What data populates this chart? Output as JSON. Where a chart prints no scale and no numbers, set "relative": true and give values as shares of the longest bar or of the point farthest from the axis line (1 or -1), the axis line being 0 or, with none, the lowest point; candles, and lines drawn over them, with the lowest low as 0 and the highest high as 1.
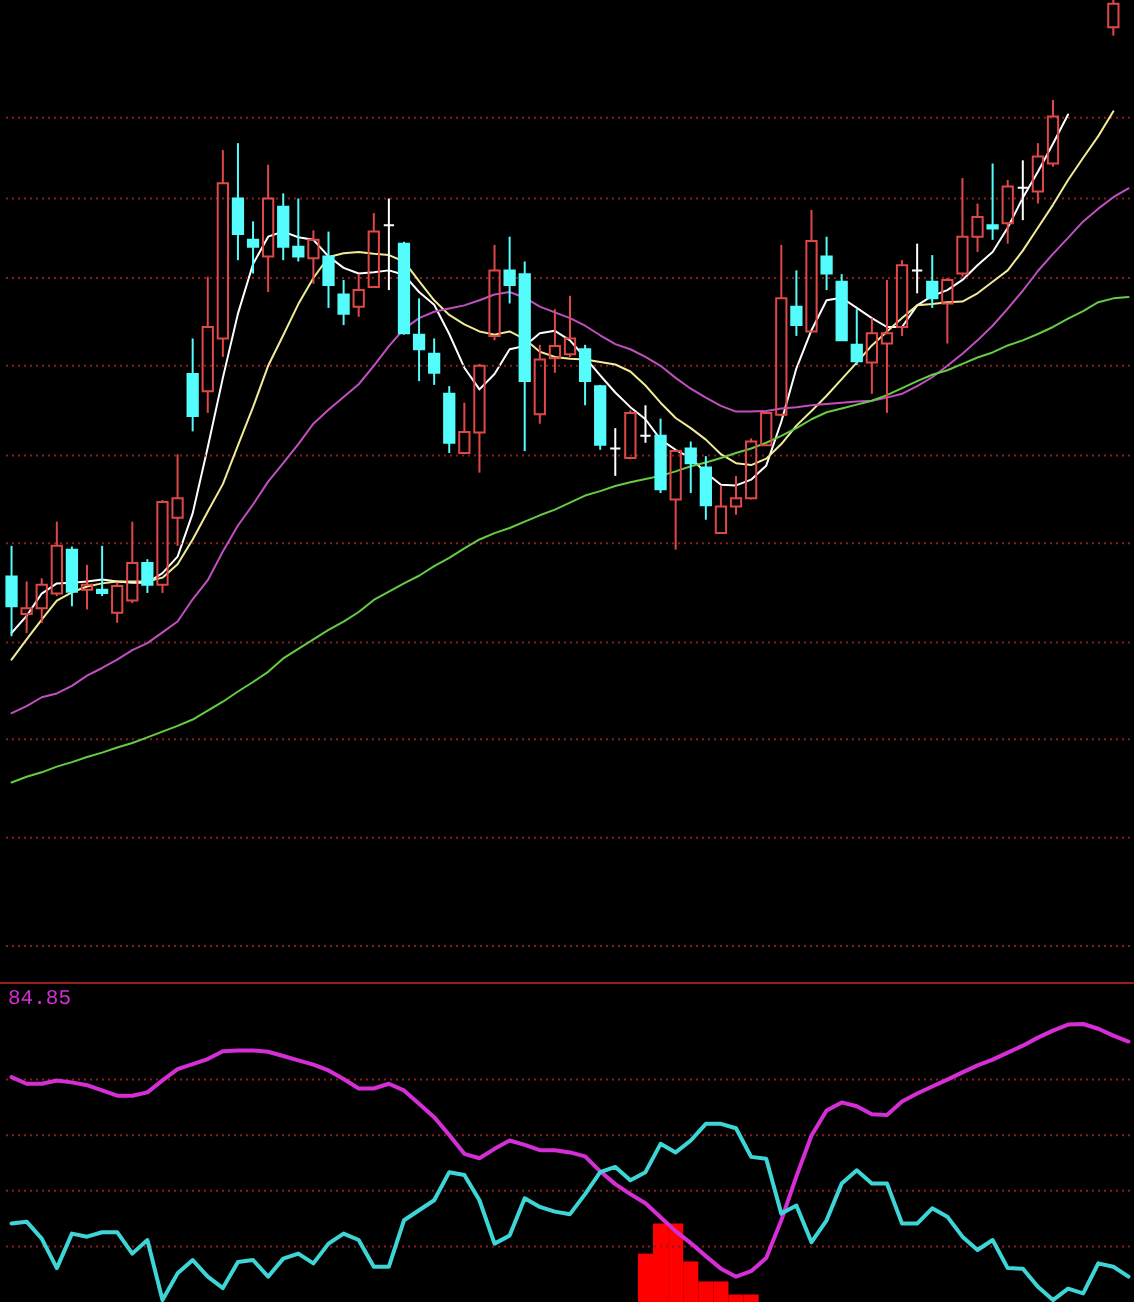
{
  "chart_data": [
    {
      "type": "candlestick",
      "relative": true,
      "categories": [
        null,
        null,
        null,
        null,
        null,
        null,
        null,
        null,
        null,
        null,
        null,
        null,
        null,
        null,
        null,
        null,
        null,
        null,
        null,
        null,
        null,
        null,
        null,
        null,
        null,
        null,
        null,
        null,
        null,
        null,
        null,
        null,
        null,
        null,
        null,
        null,
        null,
        null,
        null,
        null,
        null,
        null,
        null,
        null,
        null,
        null,
        null,
        null,
        null,
        null,
        null,
        null,
        null,
        null,
        null,
        null,
        null,
        null,
        null,
        null,
        null,
        null,
        null,
        null,
        null,
        null,
        null,
        null,
        null,
        null,
        null,
        null,
        null,
        null,
        null
      ],
      "ref_lines": [
        {
          "axis": "y",
          "value": 0.815,
          "color": "#8a1c1c",
          "line_style": "dotted"
        },
        {
          "axis": "y",
          "value": 0.688,
          "color": "#8a1c1c",
          "line_style": "dotted"
        },
        {
          "axis": "y",
          "value": 0.563,
          "color": "#8a1c1c",
          "line_style": "dotted"
        },
        {
          "axis": "y",
          "value": 0.425,
          "color": "#8a1c1c",
          "line_style": "dotted"
        },
        {
          "axis": "y",
          "value": 0.284,
          "color": "#8a1c1c",
          "line_style": "dotted"
        },
        {
          "axis": "y",
          "value": 0.146,
          "color": "#8a1c1c",
          "line_style": "dotted"
        },
        {
          "axis": "y",
          "value": -0.01,
          "color": "#8a1c1c",
          "line_style": "dotted"
        },
        {
          "axis": "y",
          "value": -0.162,
          "color": "#8a1c1c",
          "line_style": "dotted"
        },
        {
          "axis": "y",
          "value": -0.317,
          "color": "#8a1c1c",
          "line_style": "dotted"
        },
        {
          "axis": "y",
          "value": -0.487,
          "color": "#8a1c1c",
          "line_style": "dotted"
        }
      ],
      "ohlc": [
        [
          0.094,
          0.142,
          0,
          0.047
        ],
        [
          0.035,
          0.086,
          0.005,
          0.044
        ],
        [
          0.044,
          0.091,
          0.021,
          0.081
        ],
        [
          0.067,
          0.18,
          0.063,
          0.142
        ],
        [
          0.136,
          0.141,
          0.047,
          0.07
        ],
        [
          0.073,
          0.112,
          0.042,
          0.081
        ],
        [
          0.073,
          0.142,
          0.063,
          0.068
        ],
        [
          0.037,
          0.084,
          0.021,
          0.079
        ],
        [
          0.056,
          0.18,
          0.052,
          0.115
        ],
        [
          0.115,
          0.121,
          0.068,
          0.081
        ],
        [
          0.081,
          0.214,
          0.068,
          0.211
        ],
        [
          0.186,
          0.286,
          0.142,
          0.217
        ],
        [
          0.412,
          0.468,
          0.322,
          0.346
        ],
        [
          0.385,
          0.565,
          0.351,
          0.486
        ],
        [
          0.468,
          0.764,
          0.439,
          0.712
        ],
        [
          0.688,
          0.775,
          0.591,
          0.632
        ],
        [
          0.623,
          0.652,
          0.57,
          0.612
        ],
        [
          0.597,
          0.741,
          0.541,
          0.688
        ],
        [
          0.675,
          0.696,
          0.591,
          0.612
        ],
        [
          0.612,
          0.688,
          0.589,
          0.597
        ],
        [
          0.594,
          0.638,
          0.554,
          0.623
        ],
        [
          0.597,
          0.636,
          0.516,
          0.552
        ],
        [
          0.537,
          0.56,
          0.489,
          0.507
        ],
        [
          0.518,
          0.569,
          0.502,
          0.544
        ],
        [
          0.549,
          0.665,
          0.549,
          0.636
        ],
        [
          0.646,
          0.688,
          0.544,
          0.646
        ],
        [
          0.617,
          0.62,
          0.474,
          0.476
        ],
        [
          0.474,
          0.531,
          0.401,
          0.451
        ],
        [
          0.444,
          0.468,
          0.395,
          0.414
        ],
        [
          0.381,
          0.393,
          0.288,
          0.304
        ],
        [
          0.288,
          0.367,
          0.286,
          0.321
        ],
        [
          0.32,
          0.428,
          0.257,
          0.425
        ],
        [
          0.472,
          0.615,
          0.465,
          0.575
        ],
        [
          0.575,
          0.628,
          0.523,
          0.552
        ],
        [
          0.569,
          0.589,
          0.291,
          0.401
        ],
        [
          0.349,
          0.458,
          0.334,
          0.435
        ],
        [
          0.437,
          0.514,
          0.414,
          0.456
        ],
        [
          0.443,
          0.535,
          0.439,
          0.468
        ],
        [
          0.451,
          0.458,
          0.363,
          0.401
        ],
        [
          0.393,
          0.395,
          0.293,
          0.301
        ],
        [
          0.295,
          0.327,
          0.252,
          0.295
        ],
        [
          0.28,
          0.355,
          0.278,
          0.351
        ],
        [
          0.315,
          0.363,
          0.304,
          0.315
        ],
        [
          0.315,
          0.342,
          0.225,
          0.231
        ],
        [
          0.215,
          0.293,
          0.136,
          0.291
        ],
        [
          0.295,
          0.306,
          0.225,
          0.272
        ],
        [
          0.265,
          0.283,
          0.183,
          0.206
        ],
        [
          0.162,
          0.237,
          0.162,
          0.204
        ],
        [
          0.204,
          0.252,
          0.191,
          0.217
        ],
        [
          0.217,
          0.311,
          0.215,
          0.306
        ],
        [
          0.3,
          0.353,
          0.299,
          0.351
        ],
        [
          0.348,
          0.615,
          0.346,
          0.531
        ],
        [
          0.518,
          0.575,
          0.472,
          0.489
        ],
        [
          0.479,
          0.67,
          0.479,
          0.621
        ],
        [
          0.597,
          0.628,
          0.544,
          0.57
        ],
        [
          0.557,
          0.569,
          0.464,
          0.465
        ],
        [
          0.458,
          0.514,
          0.426,
          0.432
        ],
        [
          0.43,
          0.5,
          0.381,
          0.476
        ],
        [
          0.46,
          0.56,
          0.351,
          0.476
        ],
        [
          0.486,
          0.591,
          0.472,
          0.583
        ],
        [
          0.575,
          0.617,
          0.539,
          0.575
        ],
        [
          0.557,
          0.599,
          0.516,
          0.531
        ],
        [
          0.523,
          0.563,
          0.46,
          0.56
        ],
        [
          0.57,
          0.72,
          0.565,
          0.628
        ],
        [
          0.628,
          0.68,
          0.604,
          0.659
        ],
        [
          0.646,
          0.743,
          0.623,
          0.641
        ],
        [
          0.649,
          0.717,
          0.617,
          0.707
        ],
        [
          0.705,
          0.748,
          0.654,
          0.705
        ],
        [
          0.699,
          0.775,
          0.68,
          0.754
        ],
        [
          0.743,
          0.843,
          0.738,
          0.817
        ],
        null,
        null,
        null,
        [
          0.957,
          1,
          0.944,
          0.994
        ],
        null
      ],
      "colors": [
        "#54fcfc",
        "#e04848",
        "#e04848",
        "#e04848",
        "#54fcfc",
        "#e04848",
        "#54fcfc",
        "#e04848",
        "#e04848",
        "#54fcfc",
        "#e04848",
        "#e04848",
        "#54fcfc",
        "#e04848",
        "#e04848",
        "#54fcfc",
        "#54fcfc",
        "#e04848",
        "#54fcfc",
        "#54fcfc",
        "#e04848",
        "#54fcfc",
        "#54fcfc",
        "#e04848",
        "#e04848",
        "#ffffff",
        "#54fcfc",
        "#54fcfc",
        "#54fcfc",
        "#54fcfc",
        "#e04848",
        "#e04848",
        "#e04848",
        "#54fcfc",
        "#54fcfc",
        "#e04848",
        "#e04848",
        "#e04848",
        "#54fcfc",
        "#54fcfc",
        "#ffffff",
        "#e04848",
        "#ffffff",
        "#54fcfc",
        "#e04848",
        "#54fcfc",
        "#54fcfc",
        "#e04848",
        "#e04848",
        "#e04848",
        "#e04848",
        "#e04848",
        "#54fcfc",
        "#e04848",
        "#54fcfc",
        "#54fcfc",
        "#54fcfc",
        "#e04848",
        "#e04848",
        "#e04848",
        "#ffffff",
        "#54fcfc",
        "#e04848",
        "#e04848",
        "#e04848",
        "#54fcfc",
        "#e04848",
        "#ffffff",
        "#e04848",
        "#e04848",
        null,
        null,
        null,
        "#e04848",
        null
      ],
      "series": [
        {
          "type": "line",
          "color": "#ffffff",
          "values": [
            0.005,
            0.032,
            0.067,
            0.083,
            0.084,
            0.086,
            0.089,
            0.086,
            0.084,
            0.084,
            0.099,
            0.125,
            0.193,
            0.297,
            0.406,
            0.507,
            0.585,
            0.628,
            0.636,
            0.627,
            0.623,
            0.597,
            0.579,
            0.57,
            0.572,
            0.575,
            0.568,
            0.541,
            0.521,
            0.475,
            0.422,
            0.388,
            0.412,
            0.451,
            0.456,
            0.476,
            0.48,
            0.465,
            0.438,
            0.41,
            0.383,
            0.36,
            0.341,
            0.309,
            0.293,
            0.28,
            0.257,
            0.238,
            0.237,
            0.246,
            0.268,
            0.337,
            0.421,
            0.481,
            0.528,
            0.532,
            0.516,
            0.5,
            0.486,
            0.486,
            0.52,
            0.535,
            0.544,
            0.56,
            0.583,
            0.604,
            0.642,
            0.689,
            0.73,
            0.774,
            0.82,
            null,
            null,
            null,
            null
          ]
        },
        {
          "type": "line",
          "color": "#f2eb96",
          "values": [
            -0.037,
            -0.005,
            0.026,
            0.056,
            0.069,
            0.078,
            0.083,
            0.086,
            0.086,
            0.086,
            0.092,
            0.113,
            0.152,
            0.196,
            0.239,
            0.3,
            0.36,
            0.425,
            0.473,
            0.522,
            0.563,
            0.596,
            0.602,
            0.604,
            0.601,
            0.599,
            0.589,
            0.558,
            0.528,
            0.505,
            0.49,
            0.479,
            0.474,
            0.479,
            0.467,
            0.447,
            0.439,
            0.436,
            0.435,
            0.431,
            0.427,
            0.416,
            0.394,
            0.367,
            0.343,
            0.327,
            0.309,
            0.286,
            0.272,
            0.269,
            0.279,
            0.302,
            0.331,
            0.354,
            0.378,
            0.404,
            0.43,
            0.457,
            0.479,
            0.5,
            0.52,
            0.522,
            0.525,
            0.526,
            0.539,
            0.557,
            0.575,
            0.606,
            0.642,
            0.678,
            0.717,
            0.752,
            0.786,
            0.825,
            null
          ]
        },
        {
          "type": "line",
          "color": "#c050c0",
          "values": [
            -0.121,
            -0.11,
            -0.096,
            -0.09,
            -0.078,
            -0.062,
            -0.05,
            -0.037,
            -0.022,
            -0.011,
            0.006,
            0.023,
            0.058,
            0.088,
            0.133,
            0.174,
            0.207,
            0.243,
            0.272,
            0.302,
            0.334,
            0.356,
            0.376,
            0.396,
            0.425,
            0.456,
            0.483,
            0.5,
            0.51,
            0.515,
            0.52,
            0.528,
            0.537,
            0.541,
            0.532,
            0.518,
            0.509,
            0.5,
            0.488,
            0.473,
            0.459,
            0.451,
            0.439,
            0.425,
            0.406,
            0.389,
            0.375,
            0.362,
            0.353,
            0.353,
            0.354,
            0.358,
            0.36,
            0.363,
            0.365,
            0.367,
            0.369,
            0.37,
            0.375,
            0.381,
            0.393,
            0.407,
            0.425,
            0.444,
            0.465,
            0.488,
            0.515,
            0.543,
            0.574,
            0.601,
            0.626,
            0.652,
            0.672,
            0.69,
            0.704
          ]
        },
        {
          "type": "line",
          "color": "#66cc44",
          "values": [
            -0.23,
            -0.221,
            -0.214,
            -0.205,
            -0.198,
            -0.19,
            -0.183,
            -0.175,
            -0.168,
            -0.159,
            -0.15,
            -0.141,
            -0.131,
            -0.117,
            -0.103,
            -0.087,
            -0.072,
            -0.056,
            -0.035,
            -0.02,
            -0.005,
            0.01,
            0.023,
            0.038,
            0.057,
            0.07,
            0.083,
            0.095,
            0.11,
            0.123,
            0.138,
            0.152,
            0.162,
            0.17,
            0.18,
            0.19,
            0.199,
            0.21,
            0.221,
            0.228,
            0.236,
            0.242,
            0.247,
            0.252,
            0.259,
            0.267,
            0.273,
            0.28,
            0.288,
            0.295,
            0.304,
            0.315,
            0.327,
            0.341,
            0.352,
            0.358,
            0.364,
            0.37,
            0.379,
            0.39,
            0.401,
            0.411,
            0.418,
            0.428,
            0.438,
            0.446,
            0.457,
            0.465,
            0.475,
            0.486,
            0.499,
            0.511,
            0.525,
            0.531,
            0.533
          ]
        }
      ]
    },
    {
      "type": "line",
      "relative": true,
      "annotations": [
        "84.85"
      ],
      "categories": [
        null,
        null,
        null,
        null,
        null,
        null,
        null,
        null,
        null,
        null,
        null,
        null,
        null,
        null,
        null,
        null,
        null,
        null,
        null,
        null,
        null,
        null,
        null,
        null,
        null,
        null,
        null,
        null,
        null,
        null,
        null,
        null,
        null,
        null,
        null,
        null,
        null,
        null,
        null,
        null,
        null,
        null,
        null,
        null,
        null,
        null,
        null,
        null,
        null,
        null,
        null,
        null,
        null,
        null,
        null,
        null,
        null,
        null,
        null,
        null,
        null,
        null,
        null,
        null,
        null,
        null,
        null,
        null,
        null,
        null,
        null,
        null,
        null,
        null,
        null
      ],
      "ref_lines": [
        {
          "axis": "y",
          "value": 0.8,
          "color": "#8a1c1c",
          "line_style": "dotted"
        },
        {
          "axis": "y",
          "value": 0.6,
          "color": "#8a1c1c",
          "line_style": "dotted"
        },
        {
          "axis": "y",
          "value": 0.4,
          "color": "#8a1c1c",
          "line_style": "dotted"
        },
        {
          "axis": "y",
          "value": 0.2,
          "color": "#8a1c1c",
          "line_style": "dotted"
        }
      ],
      "series": [
        {
          "color": "#d42ed4",
          "values": [
            0.809,
            0.785,
            0.785,
            0.797,
            0.79,
            0.78,
            0.761,
            0.742,
            0.742,
            0.754,
            0.797,
            0.838,
            0.856,
            0.874,
            0.902,
            0.905,
            0.905,
            0.9,
            0.885,
            0.869,
            0.854,
            0.833,
            0.802,
            0.768,
            0.768,
            0.785,
            0.761,
            0.713,
            0.665,
            0.601,
            0.533,
            0.517,
            0.551,
            0.581,
            0.565,
            0.546,
            0.546,
            0.538,
            0.524,
            0.47,
            0.424,
            0.388,
            0.355,
            0.305,
            0.255,
            0.212,
            0.165,
            0.12,
            0.091,
            0.111,
            0.158,
            0.294,
            0.452,
            0.599,
            0.689,
            0.718,
            0.704,
            0.675,
            0.673,
            0.721,
            0.75,
            0.775,
            0.8,
            0.826,
            0.851,
            0.872,
            0.897,
            0.922,
            0.951,
            0.976,
            0.998,
            1,
            0.983,
            0.958,
            0.937
          ]
        },
        {
          "color": "#3dd5d5",
          "values": [
            0.282,
            0.289,
            0.228,
            0.122,
            0.246,
            0.235,
            0.251,
            0.251,
            0.174,
            0.223,
            0.007,
            0.103,
            0.151,
            0.091,
            0.05,
            0.144,
            0.151,
            0.091,
            0.156,
            0.174,
            0.139,
            0.21,
            0.246,
            0.223,
            0.127,
            0.127,
            0.294,
            0.33,
            0.366,
            0.467,
            0.457,
            0.366,
            0.21,
            0.239,
            0.373,
            0.342,
            0.325,
            0.316,
            0.388,
            0.467,
            0.486,
            0.438,
            0.467,
            0.569,
            0.538,
            0.581,
            0.641,
            0.641,
            0.625,
            0.522,
            0.515,
            0.318,
            0.347,
            0.215,
            0.294,
            0.426,
            0.474,
            0.426,
            0.426,
            0.282,
            0.282,
            0.337,
            0.307,
            0.235,
            0.187,
            0.223,
            0.122,
            0.12,
            0.055,
            0.007,
            0.048,
            0.031,
            0.139,
            0.127,
            0.091
          ]
        },
        {
          "type": "bar",
          "color": "#ff0000",
          "values": [
            null,
            null,
            null,
            null,
            null,
            null,
            null,
            null,
            null,
            null,
            null,
            null,
            null,
            null,
            null,
            null,
            null,
            null,
            null,
            null,
            null,
            null,
            null,
            null,
            null,
            null,
            null,
            null,
            null,
            null,
            null,
            null,
            null,
            null,
            null,
            null,
            null,
            null,
            null,
            null,
            null,
            null,
            0.174,
            0.282,
            0.282,
            0.146,
            0.074,
            0.074,
            0.027,
            0.027,
            null,
            null,
            null,
            null,
            null,
            null,
            null,
            null,
            null,
            null,
            null,
            null,
            null,
            null,
            null,
            null,
            null,
            null,
            null,
            null,
            null,
            null,
            null,
            null,
            null
          ]
        }
      ]
    }
  ]
}
